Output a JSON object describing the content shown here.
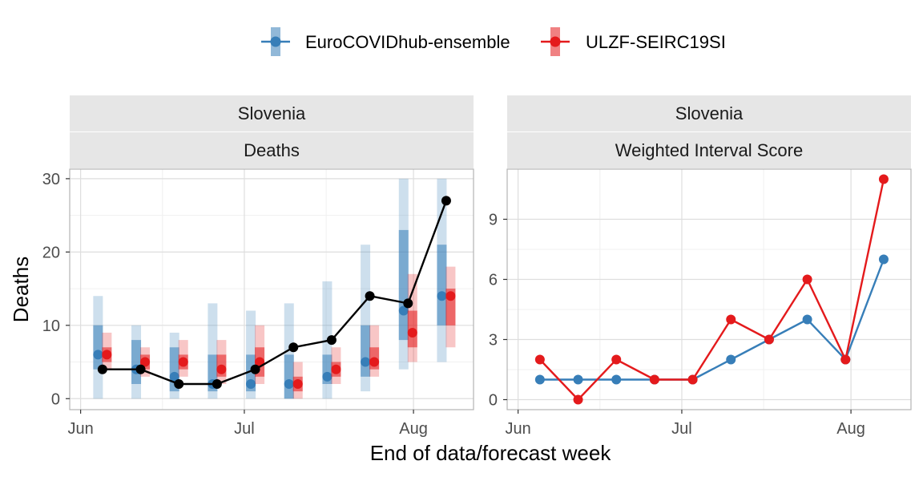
{
  "legend": {
    "items": [
      {
        "label": "EuroCOVIDhub-ensemble",
        "color": "#377EB8"
      },
      {
        "label": "ULZF-SEIRC19SI",
        "color": "#E41A1C"
      }
    ]
  },
  "x_axis_title": "End of data/forecast week",
  "chart_data": [
    {
      "type": "line",
      "panel": "left",
      "strip_top": "Slovenia",
      "strip_bottom": "Deaths",
      "ylabel": "Deaths",
      "xlabel": "End of data/forecast week",
      "ylim": [
        -1.5,
        31.3
      ],
      "yticks": [
        0,
        10,
        20,
        30
      ],
      "xticks": [
        {
          "label": "Jun",
          "date": "2021-06-01"
        },
        {
          "label": "Jul",
          "date": "2021-07-01"
        },
        {
          "label": "Aug",
          "date": "2021-08-01"
        }
      ],
      "xlim": [
        "2021-05-30",
        "2021-08-12"
      ],
      "grid": true,
      "observed": {
        "color": "#000000",
        "dates": [
          "2021-06-05",
          "2021-06-12",
          "2021-06-19",
          "2021-06-26",
          "2021-07-03",
          "2021-07-10",
          "2021-07-17",
          "2021-07-24",
          "2021-07-31",
          "2021-08-07"
        ],
        "values": [
          4,
          4,
          2,
          2,
          4,
          7,
          8,
          14,
          13,
          27
        ]
      },
      "forecast_dates": [
        "2021-06-05",
        "2021-06-12",
        "2021-06-19",
        "2021-06-26",
        "2021-07-03",
        "2021-07-10",
        "2021-07-17",
        "2021-07-24",
        "2021-07-31",
        "2021-08-07"
      ],
      "series": [
        {
          "name": "EuroCOVIDhub-ensemble",
          "color": "#377EB8",
          "median": [
            6,
            4,
            3,
            2,
            2,
            2,
            3,
            5,
            12,
            14
          ],
          "inner": [
            [
              4,
              10
            ],
            [
              2,
              8
            ],
            [
              1,
              7
            ],
            [
              1,
              6
            ],
            [
              1,
              6
            ],
            [
              0,
              6
            ],
            [
              2,
              6
            ],
            [
              3,
              10
            ],
            [
              8,
              23
            ],
            [
              10,
              21
            ]
          ],
          "outer": [
            [
              0,
              14
            ],
            [
              0,
              10
            ],
            [
              0,
              9
            ],
            [
              0,
              13
            ],
            [
              0,
              12
            ],
            [
              0,
              13
            ],
            [
              0,
              16
            ],
            [
              1,
              21
            ],
            [
              4,
              30
            ],
            [
              5,
              30
            ]
          ]
        },
        {
          "name": "ULZF-SEIRC19SI",
          "color": "#E41A1C",
          "median": [
            6,
            5,
            5,
            4,
            5,
            2,
            4,
            5,
            9,
            14
          ],
          "inner": [
            [
              5,
              7
            ],
            [
              4,
              6
            ],
            [
              4,
              6
            ],
            [
              3,
              6
            ],
            [
              3,
              7
            ],
            [
              1,
              3
            ],
            [
              3,
              5
            ],
            [
              4,
              7
            ],
            [
              7,
              12
            ],
            [
              10,
              15
            ]
          ],
          "outer": [
            [
              4,
              9
            ],
            [
              3,
              7
            ],
            [
              3,
              8
            ],
            [
              2,
              8
            ],
            [
              2,
              10
            ],
            [
              0,
              5
            ],
            [
              2,
              7
            ],
            [
              3,
              10
            ],
            [
              5,
              17
            ],
            [
              7,
              18
            ]
          ]
        }
      ]
    },
    {
      "type": "line",
      "panel": "right",
      "strip_top": "Slovenia",
      "strip_bottom": "Weighted Interval Score",
      "ylim": [
        -0.5,
        11.5
      ],
      "yticks": [
        0,
        3,
        6,
        9
      ],
      "xticks": [
        {
          "label": "Jun",
          "date": "2021-06-01"
        },
        {
          "label": "Jul",
          "date": "2021-07-01"
        },
        {
          "label": "Aug",
          "date": "2021-08-01"
        }
      ],
      "xlim": [
        "2021-05-30",
        "2021-08-12"
      ],
      "grid": true,
      "dates": [
        "2021-06-05",
        "2021-06-12",
        "2021-06-19",
        "2021-06-26",
        "2021-07-03",
        "2021-07-10",
        "2021-07-17",
        "2021-07-24",
        "2021-07-31",
        "2021-08-07"
      ],
      "series": [
        {
          "name": "EuroCOVIDhub-ensemble",
          "color": "#377EB8",
          "values": [
            1,
            1,
            1,
            1,
            1,
            2,
            3,
            4,
            2,
            7
          ]
        },
        {
          "name": "ULZF-SEIRC19SI",
          "color": "#E41A1C",
          "values": [
            2,
            0,
            2,
            1,
            1,
            4,
            3,
            6,
            2,
            11
          ]
        }
      ]
    }
  ]
}
